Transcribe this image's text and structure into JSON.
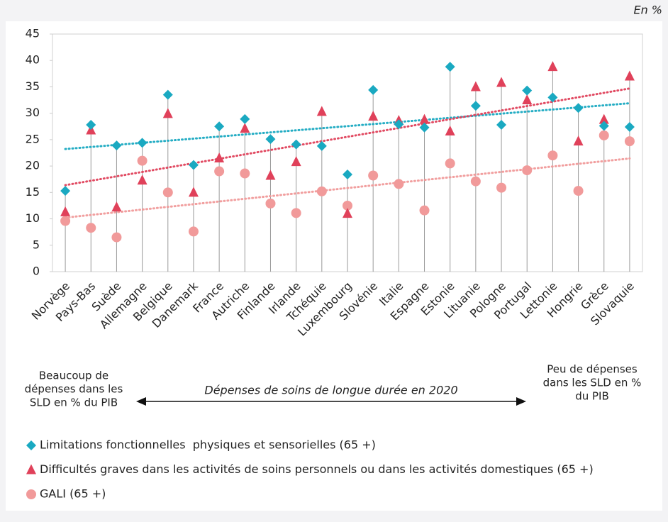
{
  "chart_data": {
    "type": "scatter",
    "unit_label": "En %",
    "categories": [
      "Norvège",
      "Pays-Bas",
      "Suède",
      "Allemagne",
      "Belgique",
      "Danemark",
      "France",
      "Autriche",
      "Finlande",
      "Irlande",
      "Tchéquie",
      "Luxembourg",
      "Slovénie",
      "Italie",
      "Espagne",
      "Estonie",
      "Lituanie",
      "Pologne",
      "Portugal",
      "Lettonie",
      "Hongrie",
      "Grèce",
      "Slovaquie"
    ],
    "series": [
      {
        "name": "Limitations fonctionnelles  physiques et sensorielles (65 +)",
        "color": "#1aa9c1",
        "marker": "diamond",
        "trendline": true,
        "values": [
          15.3,
          27.8,
          23.9,
          24.4,
          33.5,
          20.2,
          27.5,
          28.9,
          25.1,
          24.1,
          23.8,
          18.4,
          34.4,
          27.9,
          27.3,
          38.8,
          31.4,
          27.8,
          34.3,
          33.0,
          31.0,
          27.6,
          27.4
        ]
      },
      {
        "name": "Difficultés graves dans les activités de soins personnels ou dans les activités domestiques (65 +)",
        "color": "#e0415a",
        "marker": "triangle",
        "trendline": true,
        "values": [
          11.3,
          26.8,
          12.2,
          17.3,
          29.9,
          15.0,
          21.5,
          27.1,
          18.2,
          20.8,
          30.3,
          11.0,
          29.4,
          28.6,
          28.8,
          26.6,
          35.0,
          35.8,
          32.5,
          38.8,
          24.7,
          28.8,
          37.0
        ]
      },
      {
        "name": "GALI (65 +)",
        "color": "#f19a9a",
        "marker": "circle",
        "trendline": true,
        "values": [
          9.6,
          8.3,
          6.5,
          21.0,
          15.0,
          7.6,
          19.0,
          18.6,
          12.9,
          11.1,
          15.2,
          12.5,
          18.2,
          16.6,
          11.6,
          20.5,
          17.1,
          15.9,
          19.2,
          22.0,
          15.3,
          25.8,
          24.7
        ]
      }
    ],
    "ylim": [
      0,
      45
    ],
    "yticks": [
      0,
      5,
      10,
      15,
      20,
      25,
      30,
      35,
      40,
      45
    ],
    "annotation_left": [
      "Beaucoup de",
      "dépenses dans les",
      "SLD en % du PIB"
    ],
    "annotation_right": [
      "Peu de dépenses",
      "dans les SLD en %",
      "du PIB"
    ],
    "arrow_label": "Dépenses de soins de longue durée en 2020"
  }
}
